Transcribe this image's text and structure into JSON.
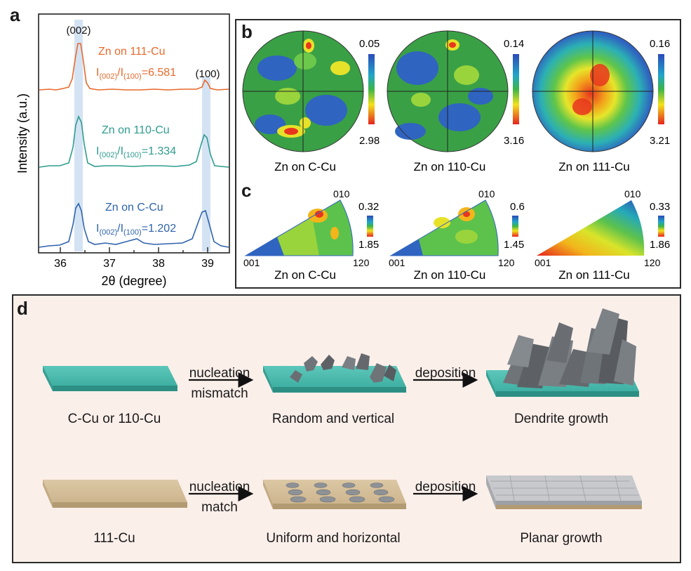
{
  "panel_a": {
    "letter": "a",
    "peak_labels": [
      "(002)",
      "(100)"
    ],
    "curves": [
      {
        "name": "Zn on 111-Cu",
        "ratio_text": "=6.581",
        "color": "#e8692c"
      },
      {
        "name": "Zn on 110-Cu",
        "ratio_text": "=1.334",
        "color": "#2e9c8e"
      },
      {
        "name": "Zn on C-Cu",
        "ratio_text": "=1.202",
        "color": "#2f63ad"
      }
    ],
    "ratio_prefix": "I",
    "ratio_sub1": "(002)",
    "ratio_mid": "/I",
    "ratio_sub2": "(100)",
    "ylabel": "Intensity (a.u.)",
    "xlabel": "2θ (degree)",
    "xticks": [
      "36",
      "37",
      "38",
      "39"
    ]
  },
  "panel_b": {
    "letter": "b",
    "maps": [
      {
        "label": "Zn on C-Cu",
        "scale_top": "0.05",
        "scale_bottom": "2.98"
      },
      {
        "label": "Zn on 110-Cu",
        "scale_top": "0.14",
        "scale_bottom": "3.16"
      },
      {
        "label": "Zn on 111-Cu",
        "scale_top": "0.16",
        "scale_bottom": "3.21"
      }
    ]
  },
  "panel_c": {
    "letter": "c",
    "corner_top": "010",
    "corner_left": "001",
    "corner_right": "120",
    "maps": [
      {
        "label": "Zn on C-Cu",
        "scale_top": "0.32",
        "scale_bottom": "1.85"
      },
      {
        "label": "Zn on 110-Cu",
        "scale_top": "0.6",
        "scale_bottom": "1.45"
      },
      {
        "label": "Zn on 111-Cu",
        "scale_top": "0.33",
        "scale_bottom": "1.86"
      }
    ]
  },
  "panel_d": {
    "letter": "d",
    "row1": {
      "stages": [
        "C-Cu or 110-Cu",
        "Random and vertical",
        "Dendrite growth"
      ],
      "arrow1": [
        "nucleation",
        "mismatch"
      ],
      "arrow2": [
        "deposition"
      ]
    },
    "row2": {
      "stages": [
        "111-Cu",
        "Uniform and horizontal",
        "Planar growth"
      ],
      "arrow1": [
        "nucleation",
        "match"
      ],
      "arrow2": [
        "deposition"
      ]
    },
    "colors": {
      "teal": "#3fb5a8",
      "beige": "#d4c09c",
      "zn": "#6f7479",
      "background": "#fbefea"
    }
  }
}
